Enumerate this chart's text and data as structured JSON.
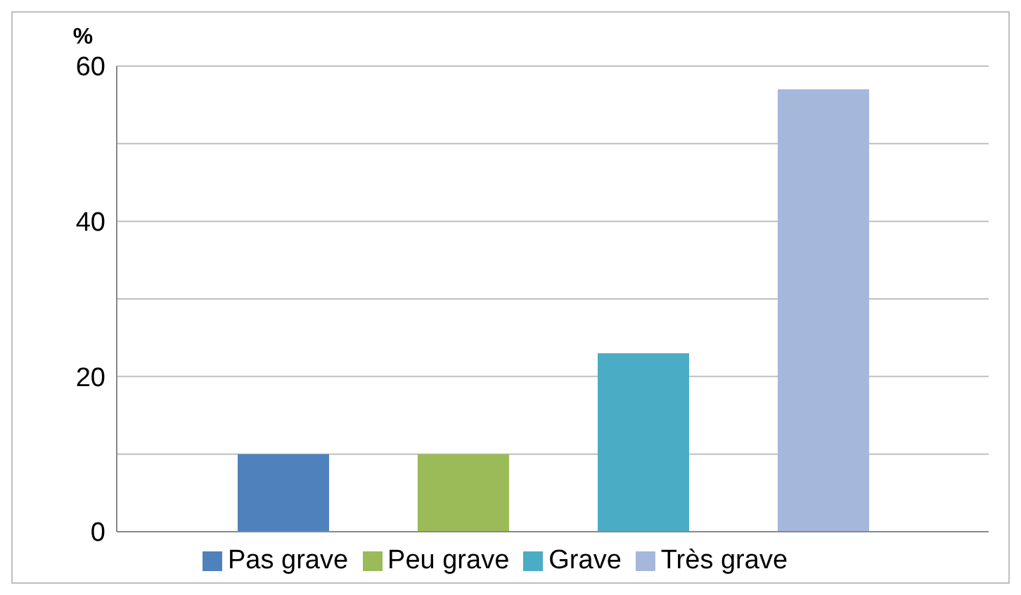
{
  "chart_data": {
    "type": "bar",
    "ylabel": "%",
    "categories": [
      null
    ],
    "series": [
      {
        "name": "Pas grave",
        "color": "#4f81bd",
        "values": [
          10
        ]
      },
      {
        "name": "Peu grave",
        "color": "#9bbb59",
        "values": [
          10
        ]
      },
      {
        "name": "Grave",
        "color": "#4bacc6",
        "values": [
          23
        ]
      },
      {
        "name": "Très grave",
        "color": "#a5b8dc",
        "values": [
          57
        ]
      }
    ],
    "ylim": [
      0,
      60
    ],
    "yticks": [
      0,
      {
        "value": 10,
        "label": null
      },
      20,
      {
        "value": 30,
        "label": null
      },
      40,
      {
        "value": 50,
        "label": null
      },
      60
    ],
    "grid": "y",
    "legend": "bottom"
  }
}
